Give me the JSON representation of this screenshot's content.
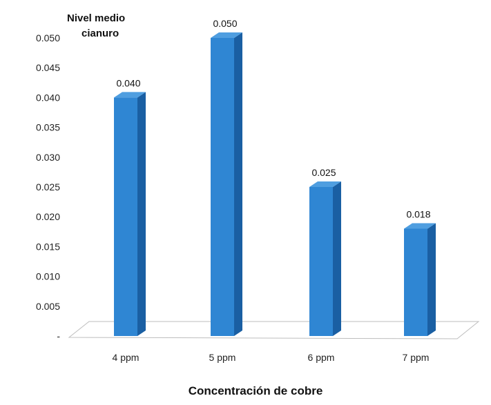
{
  "chart_data": {
    "type": "bar",
    "categories": [
      "4 ppm",
      "5 ppm",
      "6 ppm",
      "7 ppm"
    ],
    "values": [
      0.04,
      0.05,
      0.025,
      0.018
    ],
    "data_labels": [
      "0.040",
      "0.050",
      "0.025",
      "0.018"
    ],
    "ylabel": "Nivel medio cianuro",
    "ylabel_lines": [
      "Nivel medio",
      "cianuro"
    ],
    "xlabel": "Concentración de  cobre",
    "ylim": [
      0,
      0.05
    ],
    "yticks": [
      0,
      0.005,
      0.01,
      0.015,
      0.02,
      0.025,
      0.03,
      0.035,
      0.04,
      0.045,
      0.05
    ],
    "ytick_labels": [
      "-",
      "0.005",
      "0.010",
      "0.015",
      "0.020",
      "0.025",
      "0.030",
      "0.035",
      "0.040",
      "0.045",
      "0.050"
    ],
    "grid": false,
    "legend": "none",
    "style": "3d-column",
    "colors": {
      "bar_front": "#2f86d3",
      "bar_side": "#1a5fa3",
      "bar_top": "#4f9ee0",
      "floor": "#ffffff"
    }
  }
}
